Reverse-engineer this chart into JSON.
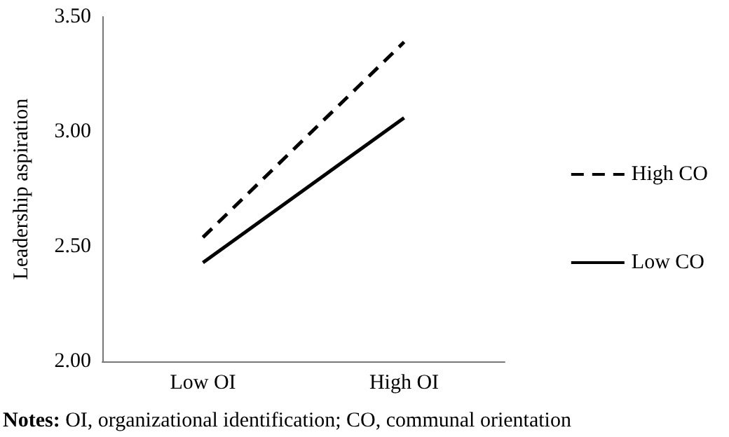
{
  "chart_data": {
    "type": "line",
    "ylabel": "Leadership aspiration",
    "categories": [
      "Low OI",
      "High OI"
    ],
    "series": [
      {
        "name": "High CO",
        "color": "#000000",
        "values": [
          2.54,
          3.39
        ],
        "line_style": "dashed"
      },
      {
        "name": "Low CO",
        "color": "#000000",
        "values": [
          2.43,
          3.06
        ],
        "line_style": "solid"
      }
    ],
    "ylim": [
      2.0,
      3.5
    ],
    "yticks": [
      {
        "value": 2,
        "label": "2.00"
      },
      {
        "value": 2.5,
        "label": "2.50"
      },
      {
        "value": 3,
        "label": "3.00"
      },
      {
        "value": 3.5,
        "label": "3.50"
      }
    ],
    "grid": false,
    "legend": "right",
    "marker": "none",
    "annotations": [
      "Notes: OI, organizational identification; CO, communal orientation"
    ]
  }
}
